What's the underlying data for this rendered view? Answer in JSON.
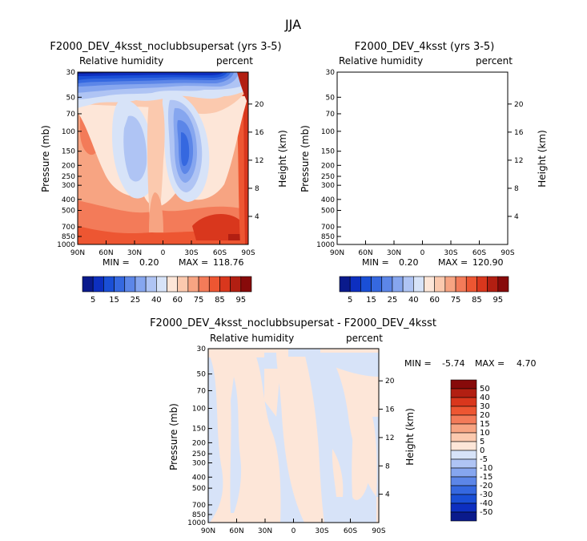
{
  "figure": {
    "super_title": "JJA",
    "colors": {
      "abs_palette": [
        "#0a1a8c",
        "#0d2fc0",
        "#1a4fd6",
        "#3568e0",
        "#5c86e8",
        "#86a6ef",
        "#afc4f4",
        "#d7e3f8",
        "#fde6d8",
        "#fbc9ae",
        "#f7a482",
        "#f37b59",
        "#ed5632",
        "#d9371d",
        "#b21f12",
        "#870a0a"
      ],
      "diff_palette": [
        "#0a1a8c",
        "#0d2fc0",
        "#1a4fd6",
        "#3568e0",
        "#5c86e8",
        "#86a6ef",
        "#afc4f4",
        "#d7e3f8",
        "#fde6d8",
        "#fbc9ae",
        "#f7a482",
        "#f37b59",
        "#ed5632",
        "#d9371d",
        "#b21f12",
        "#870a0a"
      ]
    }
  },
  "chart_data": [
    {
      "type": "heatmap",
      "title": "F2000_DEV_4ksst_noclubbsupersat (yrs 3-5)",
      "field_label": "Relative humidity",
      "units_label": "percent",
      "xlabel": "",
      "ylabel": "Pressure (mb)",
      "y2label": "Height (km)",
      "x_ticks": [
        "90N",
        "60N",
        "30N",
        "0",
        "30S",
        "60S",
        "90S"
      ],
      "y_ticks": [
        "1000",
        "850",
        "700",
        "500",
        "400",
        "300",
        "250",
        "200",
        "150",
        "100",
        "70",
        "50",
        "30"
      ],
      "y2_ticks": [
        "4",
        "8",
        "12",
        "16",
        "20"
      ],
      "stats": {
        "min_label": "MIN =",
        "min": "0.20",
        "max_label": "MAX =",
        "max": "118.76"
      },
      "colorbar_labels": [
        "5",
        "15",
        "25",
        "40",
        "60",
        "75",
        "85",
        "95"
      ]
    },
    {
      "type": "heatmap",
      "title": "F2000_DEV_4ksst (yrs 3-5)",
      "field_label": "Relative humidity",
      "units_label": "percent",
      "xlabel": "",
      "ylabel": "Pressure (mb)",
      "y2label": "Height (km)",
      "x_ticks": [
        "90N",
        "60N",
        "30N",
        "0",
        "30S",
        "60S",
        "90S"
      ],
      "y_ticks": [
        "1000",
        "850",
        "700",
        "500",
        "400",
        "300",
        "250",
        "200",
        "150",
        "100",
        "70",
        "50",
        "30"
      ],
      "y2_ticks": [
        "4",
        "8",
        "12",
        "16",
        "20"
      ],
      "stats": {
        "min_label": "MIN =",
        "min": "0.20",
        "max_label": "MAX =",
        "max": "120.90"
      },
      "colorbar_labels": [
        "5",
        "15",
        "25",
        "40",
        "60",
        "75",
        "85",
        "95"
      ]
    },
    {
      "type": "heatmap",
      "title": "F2000_DEV_4ksst_noclubbsupersat - F2000_DEV_4ksst",
      "field_label": "Relative humidity",
      "units_label": "percent",
      "xlabel": "",
      "ylabel": "Pressure (mb)",
      "y2label": "Height (km)",
      "x_ticks": [
        "90N",
        "60N",
        "30N",
        "0",
        "30S",
        "60S",
        "90S"
      ],
      "y_ticks": [
        "1000",
        "850",
        "700",
        "500",
        "400",
        "300",
        "250",
        "200",
        "150",
        "100",
        "70",
        "50",
        "30"
      ],
      "y2_ticks": [
        "4",
        "8",
        "12",
        "16",
        "20"
      ],
      "stats": {
        "min_label": "MIN =",
        "min": "-5.74",
        "max_label": "MAX =",
        "max": "4.70"
      },
      "colorbar_labels": [
        "50",
        "40",
        "30",
        "20",
        "15",
        "10",
        "5",
        "0",
        "-5",
        "-10",
        "-15",
        "-20",
        "-30",
        "-40",
        "-50"
      ]
    }
  ]
}
